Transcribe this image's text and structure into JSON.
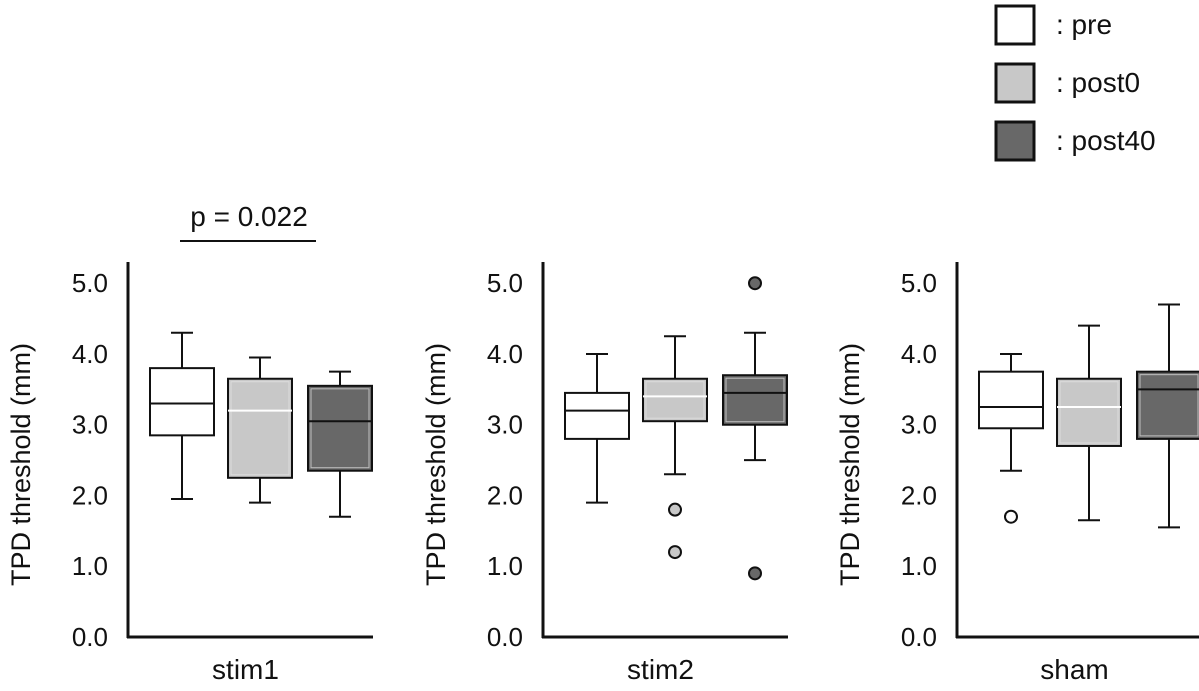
{
  "legend": {
    "items": [
      {
        "label": ": pre",
        "fill": "#ffffff"
      },
      {
        "label": ": post0",
        "fill": "#c8c8c8"
      },
      {
        "label": ": post40",
        "fill": "#686868"
      }
    ]
  },
  "chart_data": [
    {
      "type": "box",
      "xlabel": "stim1",
      "ylabel": "TPD threshold (mm)",
      "ylim": [
        0,
        5.3
      ],
      "yticks": [
        "0.0",
        "1.0",
        "2.0",
        "3.0",
        "4.0",
        "5.0"
      ],
      "groups": [
        {
          "name": "pre",
          "min": 1.95,
          "q1": 2.85,
          "median": 3.3,
          "q3": 3.8,
          "max": 4.3,
          "outliers": []
        },
        {
          "name": "post0",
          "min": 1.9,
          "q1": 2.25,
          "median": 3.2,
          "q3": 3.65,
          "max": 3.95,
          "outliers": []
        },
        {
          "name": "post40",
          "min": 1.7,
          "q1": 2.35,
          "median": 3.05,
          "q3": 3.55,
          "max": 3.75,
          "outliers": []
        }
      ],
      "annotation": {
        "text": "p = 0.022",
        "from": "pre",
        "to": "post40"
      }
    },
    {
      "type": "box",
      "xlabel": "stim2",
      "ylabel": "TPD threshold (mm)",
      "ylim": [
        0,
        5.3
      ],
      "yticks": [
        "0.0",
        "1.0",
        "2.0",
        "3.0",
        "4.0",
        "5.0"
      ],
      "groups": [
        {
          "name": "pre",
          "min": 1.9,
          "q1": 2.8,
          "median": 3.2,
          "q3": 3.45,
          "max": 4.0,
          "outliers": []
        },
        {
          "name": "post0",
          "min": 2.3,
          "q1": 3.05,
          "median": 3.4,
          "q3": 3.65,
          "max": 4.25,
          "outliers": [
            1.8,
            1.2
          ]
        },
        {
          "name": "post40",
          "min": 2.5,
          "q1": 3.0,
          "median": 3.45,
          "q3": 3.7,
          "max": 4.3,
          "outliers": [
            5.0,
            0.9
          ]
        }
      ]
    },
    {
      "type": "box",
      "xlabel": "sham",
      "ylabel": "TPD threshold (mm)",
      "ylim": [
        0,
        5.3
      ],
      "yticks": [
        "0.0",
        "1.0",
        "2.0",
        "3.0",
        "4.0",
        "5.0"
      ],
      "groups": [
        {
          "name": "pre",
          "min": 2.35,
          "q1": 2.95,
          "median": 3.25,
          "q3": 3.75,
          "max": 4.0,
          "outliers": [
            1.7
          ]
        },
        {
          "name": "post0",
          "min": 1.65,
          "q1": 2.7,
          "median": 3.25,
          "q3": 3.65,
          "max": 4.4,
          "outliers": []
        },
        {
          "name": "post40",
          "min": 1.55,
          "q1": 2.8,
          "median": 3.5,
          "q3": 3.75,
          "max": 4.7,
          "outliers": []
        }
      ]
    }
  ]
}
